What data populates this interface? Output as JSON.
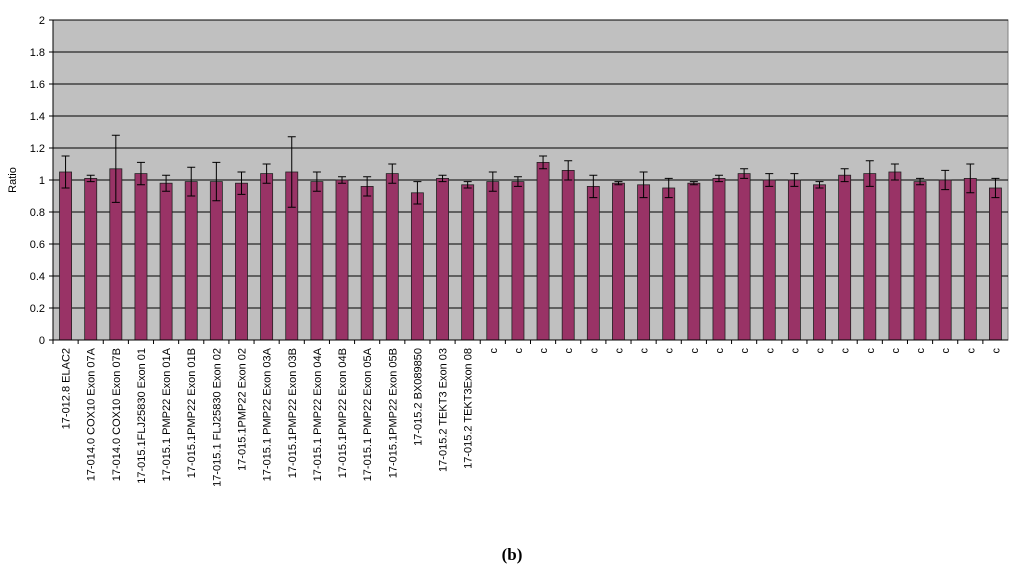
{
  "chart_data": {
    "type": "bar",
    "caption": "(b)",
    "ylabel": "Ratio",
    "categories": [
      "17-012.8 ELAC2",
      "17-014.0 COX10 Exon 07A",
      "17-014.0 COX10 Exon 07B",
      "17-015.1FLJ25830 Exon 01",
      "17-015.1 PMP22 Exon 01A",
      "17-015.1PMP22 Exon 01B",
      "17-015.1 FLJ25830 Exon 02",
      "17-015.1PMP22 Exon 02",
      "17-015.1 PMP22 Exon 03A",
      "17-015.1PMP22 Exon 03B",
      "17-015.1 PMP22 Exon 04A",
      "17-015.1PMP22 Exon 04B",
      "17-015.1 PMP22 Exon 05A",
      "17-015.1PMP22 Exon 05B",
      "17-015.2 BX089850",
      "17-015.2 TEKT3 Exon 03",
      "17-015.2 TEKT3Exon 08",
      "c",
      "c",
      "c",
      "c",
      "c",
      "c",
      "c",
      "c",
      "c",
      "c",
      "c",
      "c",
      "c",
      "c",
      "c",
      "c",
      "c",
      "c",
      "c",
      "c",
      "c"
    ],
    "values": [
      1.05,
      1.01,
      1.07,
      1.04,
      0.98,
      0.99,
      0.99,
      0.98,
      1.04,
      1.05,
      0.99,
      1.0,
      0.96,
      1.04,
      0.92,
      1.01,
      0.97,
      0.99,
      0.99,
      1.11,
      1.06,
      0.96,
      0.98,
      0.97,
      0.95,
      0.98,
      1.01,
      1.04,
      1.0,
      1.0,
      0.97,
      1.03,
      1.04,
      1.05,
      0.99,
      1.0,
      1.01,
      0.95
    ],
    "errors": [
      0.1,
      0.02,
      0.21,
      0.07,
      0.05,
      0.09,
      0.12,
      0.07,
      0.06,
      0.22,
      0.06,
      0.02,
      0.06,
      0.06,
      0.07,
      0.02,
      0.02,
      0.06,
      0.03,
      0.04,
      0.06,
      0.07,
      0.01,
      0.08,
      0.06,
      0.01,
      0.02,
      0.03,
      0.04,
      0.04,
      0.02,
      0.04,
      0.08,
      0.05,
      0.02,
      0.06,
      0.09,
      0.06
    ],
    "color": "#993366",
    "plot_background": "#c0c0c0",
    "grid": true,
    "ylim": [
      0,
      2
    ],
    "yticks": [
      0,
      0.2,
      0.4,
      0.6,
      0.8,
      1,
      1.2,
      1.4,
      1.6,
      1.8,
      2
    ]
  }
}
